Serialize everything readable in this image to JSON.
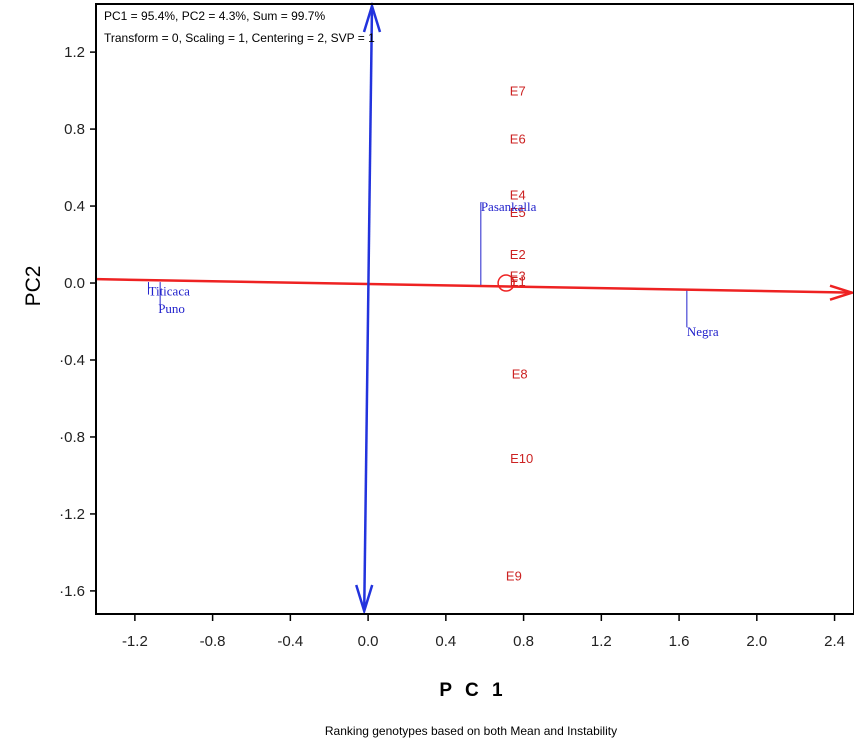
{
  "chart_data": {
    "type": "scatter",
    "xlabel": "P C 1",
    "ylabel": "PC2",
    "caption": "Ranking genotypes based on both Mean and Instability",
    "info_line1": "PC1 = 95.4%, PC2 = 4.3%, Sum = 99.7%",
    "info_line2": "Transform = 0, Scaling = 1, Centering = 2, SVP = 1",
    "xlim": [
      -1.4,
      2.5
    ],
    "ylim": [
      -1.72,
      1.45
    ],
    "x_ticks": [
      -1.2,
      -0.8,
      -0.4,
      0.0,
      0.4,
      0.8,
      1.2,
      1.6,
      2.0,
      2.4
    ],
    "x_tick_labels": [
      "-1.2",
      "-0.8",
      "-0.4",
      "0.0",
      "0.4",
      "0.8",
      "1.2",
      "1.6",
      "2.0",
      "2.4"
    ],
    "y_ticks": [
      1.2,
      0.8,
      0.4,
      0.0,
      -0.4,
      -0.8,
      -1.2,
      -1.6
    ],
    "y_tick_labels": [
      "1.2",
      "0.8",
      "0.4",
      "0.0",
      "·0.4",
      "·0.8",
      "·1.2",
      "·1.6"
    ],
    "environments": [
      {
        "label": "E7",
        "x": 0.77,
        "y": 1.0
      },
      {
        "label": "E6",
        "x": 0.77,
        "y": 0.75
      },
      {
        "label": "E4",
        "x": 0.77,
        "y": 0.46
      },
      {
        "label": "E5",
        "x": 0.77,
        "y": 0.37
      },
      {
        "label": "E2",
        "x": 0.77,
        "y": 0.15
      },
      {
        "label": "E3",
        "x": 0.77,
        "y": 0.04
      },
      {
        "label": "E1",
        "x": 0.77,
        "y": 0.01
      },
      {
        "label": "E8",
        "x": 0.78,
        "y": -0.47
      },
      {
        "label": "E10",
        "x": 0.79,
        "y": -0.91
      },
      {
        "label": "E9",
        "x": 0.75,
        "y": -1.52
      }
    ],
    "genotypes": [
      {
        "label": "Pasankalla",
        "x": 0.58,
        "y": 0.4
      },
      {
        "label": "Titicaca",
        "x": -1.13,
        "y": -0.04
      },
      {
        "label": "Puno",
        "x": -1.08,
        "y": -0.13
      },
      {
        "label": "Negra",
        "x": 1.64,
        "y": -0.25
      }
    ],
    "projections": [
      {
        "x": 0.58,
        "y_from": -0.01,
        "y_to": 0.42
      },
      {
        "x": -1.13,
        "y_from": 0.005,
        "y_to": -0.06
      },
      {
        "x": -1.07,
        "y_from": 0.005,
        "y_to": -0.12
      },
      {
        "x": 1.64,
        "y_from": -0.04,
        "y_to": -0.23
      }
    ],
    "average_environment": {
      "x": 0.71,
      "y": 0.0
    },
    "aec_abscissa": {
      "from": [
        -1.4,
        0.02
      ],
      "to": [
        2.5,
        -0.05
      ]
    },
    "aec_ordinate": {
      "from": [
        -0.02,
        -1.72
      ],
      "to": [
        0.02,
        1.45
      ]
    },
    "colors": {
      "environment": "#cc2222",
      "genotype": "#2222cc",
      "abscissa": "#ee2222",
      "ordinate": "#2233dd"
    }
  }
}
